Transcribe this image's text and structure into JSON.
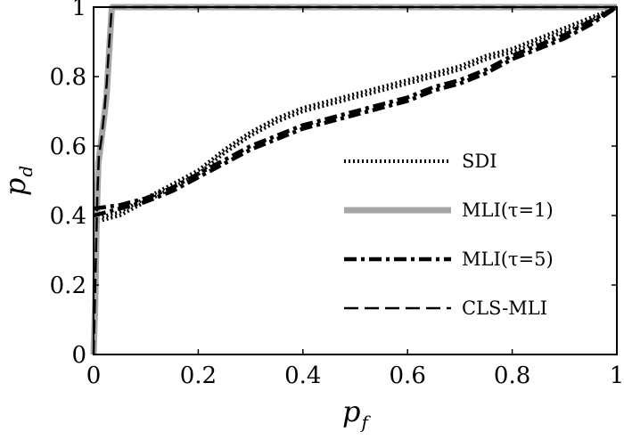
{
  "chart_data": {
    "type": "line",
    "xlabel": "p",
    "xlabel_sub": "f",
    "ylabel": "p",
    "ylabel_sub": "d",
    "xlim": [
      0,
      1
    ],
    "ylim": [
      0,
      1
    ],
    "xticks": [
      "0",
      "0.2",
      "0.4",
      "0.6",
      "0.8",
      "1"
    ],
    "yticks": [
      "0",
      "0.2",
      "0.4",
      "0.6",
      "0.8",
      "1"
    ],
    "legend_position": "right",
    "series": [
      {
        "name": "SDI",
        "style": "dotted",
        "color": "#000000",
        "curves": [
          [
            [
              0,
              0.39
            ],
            [
              0.05,
              0.41
            ],
            [
              0.1,
              0.45
            ],
            [
              0.15,
              0.49
            ],
            [
              0.2,
              0.53
            ],
            [
              0.25,
              0.59
            ],
            [
              0.3,
              0.64
            ],
            [
              0.35,
              0.68
            ],
            [
              0.4,
              0.71
            ],
            [
              0.45,
              0.73
            ],
            [
              0.5,
              0.75
            ],
            [
              0.55,
              0.77
            ],
            [
              0.6,
              0.79
            ],
            [
              0.65,
              0.81
            ],
            [
              0.7,
              0.83
            ],
            [
              0.75,
              0.86
            ],
            [
              0.8,
              0.88
            ],
            [
              0.85,
              0.91
            ],
            [
              0.9,
              0.94
            ],
            [
              0.95,
              0.97
            ],
            [
              1,
              1
            ]
          ],
          [
            [
              0,
              0.38
            ],
            [
              0.05,
              0.4
            ],
            [
              0.1,
              0.44
            ],
            [
              0.15,
              0.48
            ],
            [
              0.2,
              0.52
            ],
            [
              0.25,
              0.58
            ],
            [
              0.3,
              0.63
            ],
            [
              0.35,
              0.67
            ],
            [
              0.4,
              0.7
            ],
            [
              0.45,
              0.72
            ],
            [
              0.5,
              0.74
            ],
            [
              0.55,
              0.76
            ],
            [
              0.6,
              0.78
            ],
            [
              0.65,
              0.8
            ],
            [
              0.7,
              0.82
            ],
            [
              0.75,
              0.85
            ],
            [
              0.8,
              0.87
            ],
            [
              0.85,
              0.9
            ],
            [
              0.9,
              0.93
            ],
            [
              0.95,
              0.96
            ],
            [
              1,
              1
            ]
          ]
        ]
      },
      {
        "name": "MLI(τ=1)",
        "style": "solid",
        "color": "#a6a6a6",
        "curves": [
          [
            [
              0,
              0
            ],
            [
              0.003,
              0.15
            ],
            [
              0.006,
              0.4
            ],
            [
              0.009,
              0.55
            ],
            [
              0.015,
              0.62
            ],
            [
              0.02,
              0.68
            ],
            [
              0.025,
              0.75
            ],
            [
              0.03,
              0.88
            ],
            [
              0.035,
              1
            ],
            [
              1,
              1
            ]
          ]
        ]
      },
      {
        "name": "MLI(τ=5)",
        "style": "dashdot",
        "color": "#000000",
        "curves": [
          [
            [
              0,
              0.42
            ],
            [
              0.05,
              0.43
            ],
            [
              0.1,
              0.45
            ],
            [
              0.15,
              0.48
            ],
            [
              0.2,
              0.52
            ],
            [
              0.25,
              0.56
            ],
            [
              0.3,
              0.6
            ],
            [
              0.35,
              0.63
            ],
            [
              0.4,
              0.66
            ],
            [
              0.45,
              0.68
            ],
            [
              0.5,
              0.7
            ],
            [
              0.55,
              0.72
            ],
            [
              0.6,
              0.74
            ],
            [
              0.65,
              0.77
            ],
            [
              0.7,
              0.79
            ],
            [
              0.75,
              0.82
            ],
            [
              0.8,
              0.86
            ],
            [
              0.85,
              0.89
            ],
            [
              0.9,
              0.92
            ],
            [
              0.95,
              0.96
            ],
            [
              1,
              1
            ]
          ],
          [
            [
              0,
              0.4
            ],
            [
              0.05,
              0.42
            ],
            [
              0.1,
              0.44
            ],
            [
              0.15,
              0.47
            ],
            [
              0.2,
              0.51
            ],
            [
              0.25,
              0.55
            ],
            [
              0.3,
              0.59
            ],
            [
              0.35,
              0.62
            ],
            [
              0.4,
              0.65
            ],
            [
              0.45,
              0.67
            ],
            [
              0.5,
              0.69
            ],
            [
              0.55,
              0.71
            ],
            [
              0.6,
              0.73
            ],
            [
              0.65,
              0.76
            ],
            [
              0.7,
              0.78
            ],
            [
              0.75,
              0.81
            ],
            [
              0.8,
              0.85
            ],
            [
              0.85,
              0.88
            ],
            [
              0.9,
              0.91
            ],
            [
              0.95,
              0.95
            ],
            [
              1,
              1
            ]
          ]
        ]
      },
      {
        "name": "CLS-MLI",
        "style": "dashed",
        "color": "#000000",
        "curves": [
          [
            [
              0,
              0
            ],
            [
              0.004,
              0.25
            ],
            [
              0.007,
              0.45
            ],
            [
              0.01,
              0.57
            ],
            [
              0.015,
              0.62
            ],
            [
              0.02,
              0.69
            ],
            [
              0.025,
              0.78
            ],
            [
              0.03,
              0.9
            ],
            [
              0.035,
              1
            ],
            [
              1,
              1
            ]
          ]
        ]
      }
    ]
  }
}
